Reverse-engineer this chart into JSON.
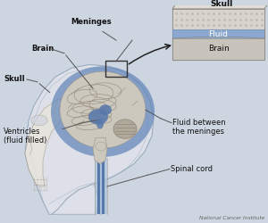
{
  "bg_color": "#cdd5e0",
  "head_fill": "#dde0e8",
  "head_edge": "#9aacbe",
  "face_fill": "#e8e4dc",
  "face_edge": "#aaa090",
  "csf_blue": "#6688bb",
  "csf_light": "#a8c0d8",
  "brain_gray": "#ccc8be",
  "brain_edge": "#9a9488",
  "ventricle_blue": "#5577aa",
  "cerebellum_fill": "#b0a898",
  "cerebellum_edge": "#8a8278",
  "spinal_blue": "#5577aa",
  "inset_bg": "#e8e6e2",
  "inset_skull_fill": "#d8d4cc",
  "inset_skull_top": "#e0ddd8",
  "inset_fluid_fill": "#7799cc",
  "inset_brain_fill": "#c8c4bc",
  "inset_edge": "#888880",
  "selection_box_color": "#333333",
  "line_color": "#555555",
  "text_color": "#111111",
  "credit_color": "#666666",
  "labels": {
    "brain": "Brain",
    "skull": "Skull",
    "meninges": "Meninges",
    "ventricles": "Ventricles\n(fluid filled)",
    "fluid_between": "Fluid between\nthe meninges",
    "spinal_cord": "Spinal cord",
    "credit": "National Cancer Institute",
    "inset_skull": "Skull",
    "inset_fluid": "Fluid",
    "inset_brain": "Brain"
  }
}
